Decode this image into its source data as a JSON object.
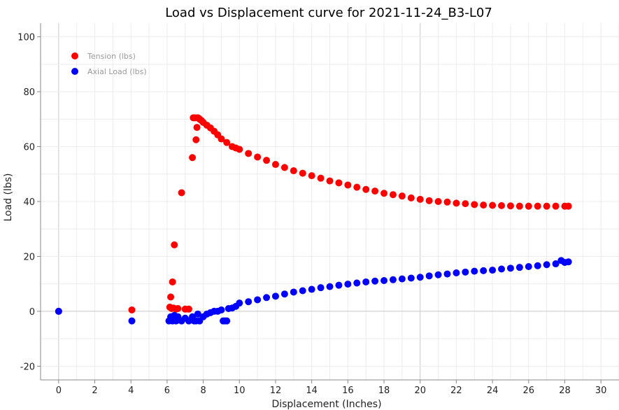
{
  "chart_data": {
    "type": "scatter",
    "title": "Load vs Displacement curve for 2021-11-24_B3-L07",
    "xlabel": "Displacement (Inches)",
    "ylabel": "Load (lbs)",
    "xlim": [
      -1,
      31
    ],
    "ylim": [
      -25,
      105
    ],
    "xticks": [
      "0",
      "2",
      "4",
      "6",
      "8",
      "10",
      "12",
      "14",
      "16",
      "18",
      "20",
      "22",
      "24",
      "26",
      "28",
      "30"
    ],
    "yticks": [
      "-20",
      "0",
      "20",
      "40",
      "60",
      "80",
      "100"
    ],
    "grid": true,
    "legend_position": "top-left",
    "series": [
      {
        "name": "Tension (lbs)",
        "color": "#ff0000",
        "x": [
          0,
          4.05,
          6.15,
          6.2,
          6.25,
          6.3,
          6.35,
          6.4,
          6.5,
          6.6,
          6.8,
          7.0,
          7.2,
          7.4,
          7.45,
          7.55,
          7.6,
          7.65,
          7.7,
          7.75,
          7.8,
          7.9,
          8.0,
          8.2,
          8.4,
          8.6,
          8.8,
          9.0,
          9.3,
          9.6,
          9.8,
          10.0,
          10.5,
          11.0,
          11.5,
          12.0,
          12.5,
          13.0,
          13.5,
          14.0,
          14.5,
          15.0,
          15.5,
          16.0,
          16.5,
          17.0,
          17.5,
          18.0,
          18.5,
          19.0,
          19.5,
          20.0,
          20.5,
          21.0,
          21.5,
          22.0,
          22.5,
          23.0,
          23.5,
          24.0,
          24.5,
          25.0,
          25.5,
          26.0,
          26.5,
          27.0,
          27.5,
          28.0,
          28.2
        ],
        "y": [
          0,
          0.5,
          1.5,
          5.2,
          1.0,
          10.7,
          1.2,
          24.2,
          0.8,
          1.0,
          43.2,
          0.8,
          0.8,
          56.0,
          70.5,
          70.5,
          62.5,
          67.0,
          70.5,
          70.3,
          70.0,
          69.5,
          68.8,
          67.8,
          66.8,
          65.6,
          64.3,
          62.8,
          61.5,
          60.0,
          59.5,
          59.0,
          57.5,
          56.2,
          55.0,
          53.5,
          52.4,
          51.2,
          50.3,
          49.4,
          48.5,
          47.5,
          46.8,
          46.0,
          45.2,
          44.4,
          43.8,
          43.0,
          42.5,
          42.0,
          41.3,
          40.8,
          40.3,
          40.0,
          39.8,
          39.4,
          39.2,
          38.9,
          38.7,
          38.6,
          38.5,
          38.4,
          38.3,
          38.3,
          38.3,
          38.3,
          38.3,
          38.3,
          38.3
        ]
      },
      {
        "name": "Axial Load (lbs)",
        "color": "#0000ff",
        "x": [
          0,
          4.05,
          6.1,
          6.2,
          6.3,
          6.4,
          6.5,
          6.6,
          6.8,
          7.0,
          7.2,
          7.4,
          7.5,
          7.6,
          7.7,
          7.8,
          8.0,
          8.2,
          8.4,
          8.6,
          8.8,
          9.0,
          9.1,
          9.2,
          9.3,
          9.4,
          9.6,
          9.8,
          10.0,
          10.5,
          11.0,
          11.5,
          12.0,
          12.5,
          13.0,
          13.5,
          14.0,
          14.5,
          15.0,
          15.5,
          16.0,
          16.5,
          17.0,
          17.5,
          18.0,
          18.5,
          19.0,
          19.5,
          20.0,
          20.5,
          21.0,
          21.5,
          22.0,
          22.5,
          23.0,
          23.5,
          24.0,
          24.5,
          25.0,
          25.5,
          26.0,
          26.5,
          27.0,
          27.5,
          27.8,
          28.0,
          28.2
        ],
        "y": [
          0,
          -3.5,
          -3.5,
          -2.0,
          -3.5,
          -1.5,
          -3.5,
          -2.0,
          -3.5,
          -2.5,
          -3.5,
          -2.0,
          -3.5,
          -3.5,
          -1.0,
          -3.5,
          -2.0,
          -1.0,
          -0.5,
          0,
          0,
          0.5,
          -3.5,
          -3.5,
          -3.5,
          1.0,
          1.2,
          1.8,
          3.0,
          3.5,
          4.2,
          5.0,
          5.5,
          6.3,
          7.0,
          7.5,
          8.0,
          8.6,
          9.0,
          9.5,
          9.9,
          10.3,
          10.7,
          11.0,
          11.2,
          11.5,
          11.8,
          12.1,
          12.4,
          12.9,
          13.3,
          13.6,
          14.0,
          14.3,
          14.6,
          14.8,
          15.0,
          15.4,
          15.7,
          16.0,
          16.3,
          16.6,
          17.0,
          17.3,
          18.5,
          17.8,
          18.0
        ]
      }
    ]
  }
}
